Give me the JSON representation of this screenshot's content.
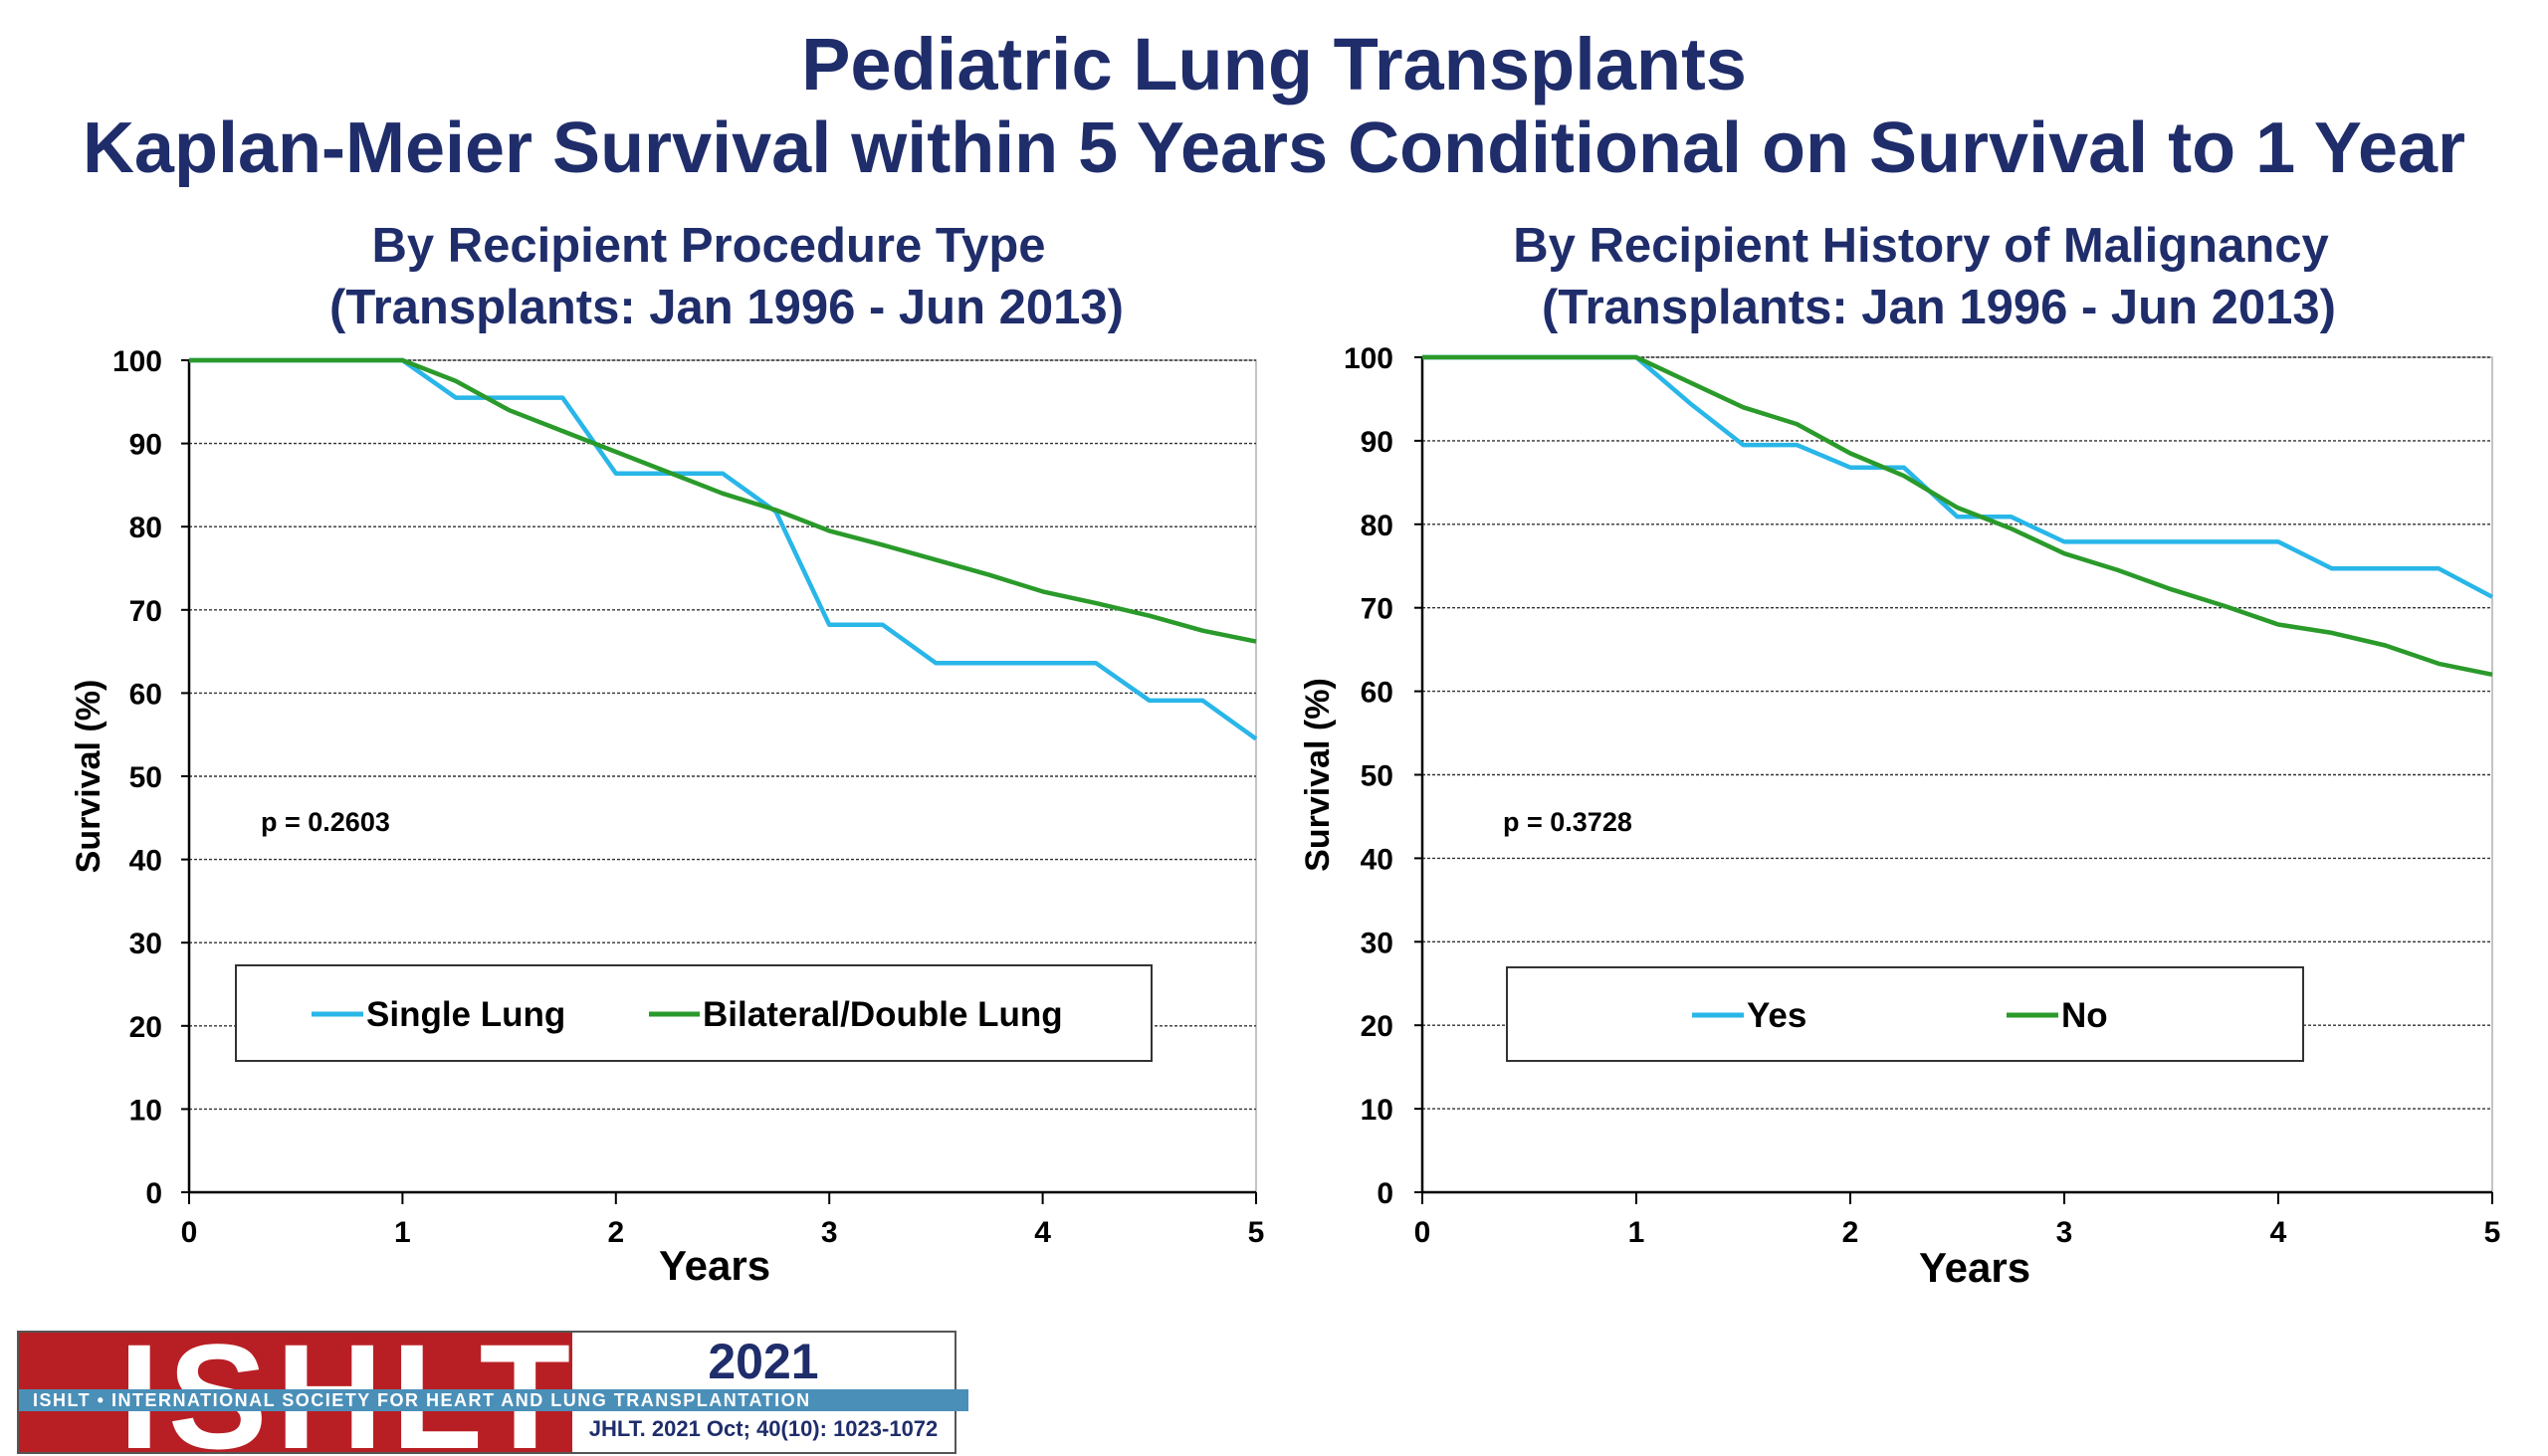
{
  "title": "Pediatric Lung Transplants",
  "subtitle": "Kaplan-Meier Survival within 5 Years Conditional on Survival to 1 Year",
  "colors": {
    "title": "#1f2d6b",
    "series_1": "#29b6e8",
    "series_2": "#2a9a2a"
  },
  "chart_data": [
    {
      "type": "line",
      "title": "By Recipient Procedure Type",
      "subtitle": "(Transplants: Jan 1996 - Jun 2013)",
      "xlabel": "Years",
      "ylabel": "Survival (%)",
      "xlim": [
        0,
        5
      ],
      "ylim": [
        0,
        100
      ],
      "xticks": [
        0,
        1,
        2,
        3,
        4,
        5
      ],
      "yticks": [
        0,
        10,
        20,
        30,
        40,
        50,
        60,
        70,
        80,
        90,
        100
      ],
      "grid": true,
      "annotation": "p  = 0.2603",
      "series": [
        {
          "name": "Single Lung",
          "color": "#29b6e8",
          "points": [
            [
              0,
              100
            ],
            [
              1,
              100
            ],
            [
              1.25,
              95.5
            ],
            [
              1.75,
              95.5
            ],
            [
              2,
              86.4
            ],
            [
              2.5,
              86.4
            ],
            [
              2.75,
              81.8
            ],
            [
              3,
              68.2
            ],
            [
              3.25,
              68.2
            ],
            [
              3.5,
              63.6
            ],
            [
              4.25,
              63.6
            ],
            [
              4.5,
              59.1
            ],
            [
              4.75,
              59.1
            ],
            [
              5,
              54.5
            ]
          ]
        },
        {
          "name": "Bilateral/Double Lung",
          "color": "#2a9a2a",
          "points": [
            [
              0,
              100
            ],
            [
              1,
              100
            ],
            [
              1.25,
              97.5
            ],
            [
              1.5,
              94
            ],
            [
              1.75,
              91.5
            ],
            [
              2,
              89
            ],
            [
              2.25,
              86.5
            ],
            [
              2.5,
              84
            ],
            [
              2.75,
              82
            ],
            [
              3,
              79.5
            ],
            [
              3.25,
              77.8
            ],
            [
              3.5,
              76
            ],
            [
              3.75,
              74.2
            ],
            [
              4,
              72.2
            ],
            [
              4.25,
              70.8
            ],
            [
              4.5,
              69.3
            ],
            [
              4.75,
              67.5
            ],
            [
              5,
              66.2
            ]
          ]
        }
      ]
    },
    {
      "type": "line",
      "title": "By Recipient History of Malignancy",
      "subtitle": "(Transplants: Jan 1996 - Jun 2013)",
      "xlabel": "Years",
      "ylabel": "Survival (%)",
      "xlim": [
        0,
        5
      ],
      "ylim": [
        0,
        100
      ],
      "xticks": [
        0,
        1,
        2,
        3,
        4,
        5
      ],
      "yticks": [
        0,
        10,
        20,
        30,
        40,
        50,
        60,
        70,
        80,
        90,
        100
      ],
      "grid": true,
      "annotation": "p  = 0.3728",
      "series": [
        {
          "name": "Yes",
          "color": "#29b6e8",
          "points": [
            [
              0,
              100
            ],
            [
              1,
              100
            ],
            [
              1.25,
              94.5
            ],
            [
              1.5,
              89.5
            ],
            [
              1.75,
              89.5
            ],
            [
              2,
              86.8
            ],
            [
              2.25,
              86.8
            ],
            [
              2.5,
              80.9
            ],
            [
              2.75,
              80.9
            ],
            [
              3,
              77.9
            ],
            [
              4,
              77.9
            ],
            [
              4.25,
              74.7
            ],
            [
              4.75,
              74.7
            ],
            [
              5,
              71.3
            ]
          ]
        },
        {
          "name": "No",
          "color": "#2a9a2a",
          "points": [
            [
              0,
              100
            ],
            [
              1,
              100
            ],
            [
              1.25,
              97
            ],
            [
              1.5,
              94
            ],
            [
              1.75,
              92
            ],
            [
              2,
              88.5
            ],
            [
              2.25,
              85.8
            ],
            [
              2.5,
              82
            ],
            [
              2.75,
              79.5
            ],
            [
              3,
              76.5
            ],
            [
              3.25,
              74.5
            ],
            [
              3.5,
              72.2
            ],
            [
              3.75,
              70.2
            ],
            [
              4,
              68
            ],
            [
              4.25,
              67
            ],
            [
              4.5,
              65.5
            ],
            [
              4.75,
              63.3
            ],
            [
              5,
              62
            ]
          ]
        }
      ]
    }
  ],
  "footer": {
    "logo_text": "ISHLT",
    "band_text": "ISHLT • INTERNATIONAL SOCIETY FOR HEART AND LUNG TRANSPLANTATION",
    "year": "2021",
    "citation": "JHLT. 2021 Oct; 40(10): 1023-1072"
  }
}
